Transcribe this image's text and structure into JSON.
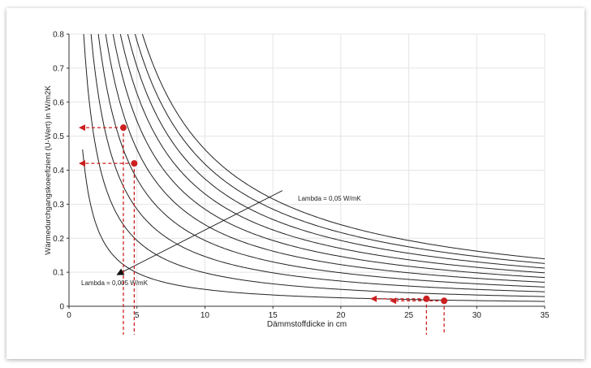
{
  "chart_data": {
    "type": "line",
    "title": "",
    "xlabel": "Dämmstoffdicke in cm",
    "ylabel": "Wärmedurchgangskoeefizient (U-Wert) in W/m2K",
    "xlim": [
      0,
      35
    ],
    "ylim": [
      0,
      0.8
    ],
    "x_ticks": [
      "0",
      "5",
      "10",
      "15",
      "20",
      "25",
      "30",
      "35"
    ],
    "y_ticks": [
      "0",
      "0.1",
      "0.2",
      "0.3",
      "0.4",
      "0.5",
      "0.6",
      "0.7",
      "0.8"
    ],
    "grid": true,
    "lambdas": [
      0.005,
      0.01,
      0.015,
      0.02,
      0.025,
      0.03,
      0.035,
      0.04,
      0.045,
      0.05
    ],
    "annotations": [
      {
        "text": "Lambda = 0,05 W/mK",
        "anchor_x": 15.7,
        "anchor_y": 0.34
      },
      {
        "text": "Lambda = 0,005 W/mK",
        "anchor_x": 3.3,
        "anchor_y": 0.1
      }
    ],
    "markers": [
      {
        "x": 4.0,
        "y": 0.525
      },
      {
        "x": 4.8,
        "y": 0.42
      },
      {
        "x": 26.3,
        "y": 0.022
      },
      {
        "x": 27.6,
        "y": 0.016
      }
    ],
    "colors": {
      "curve": "#222222",
      "marker": "#cc1f1f",
      "grid": "#e4e4e4",
      "axis": "#333333"
    }
  }
}
